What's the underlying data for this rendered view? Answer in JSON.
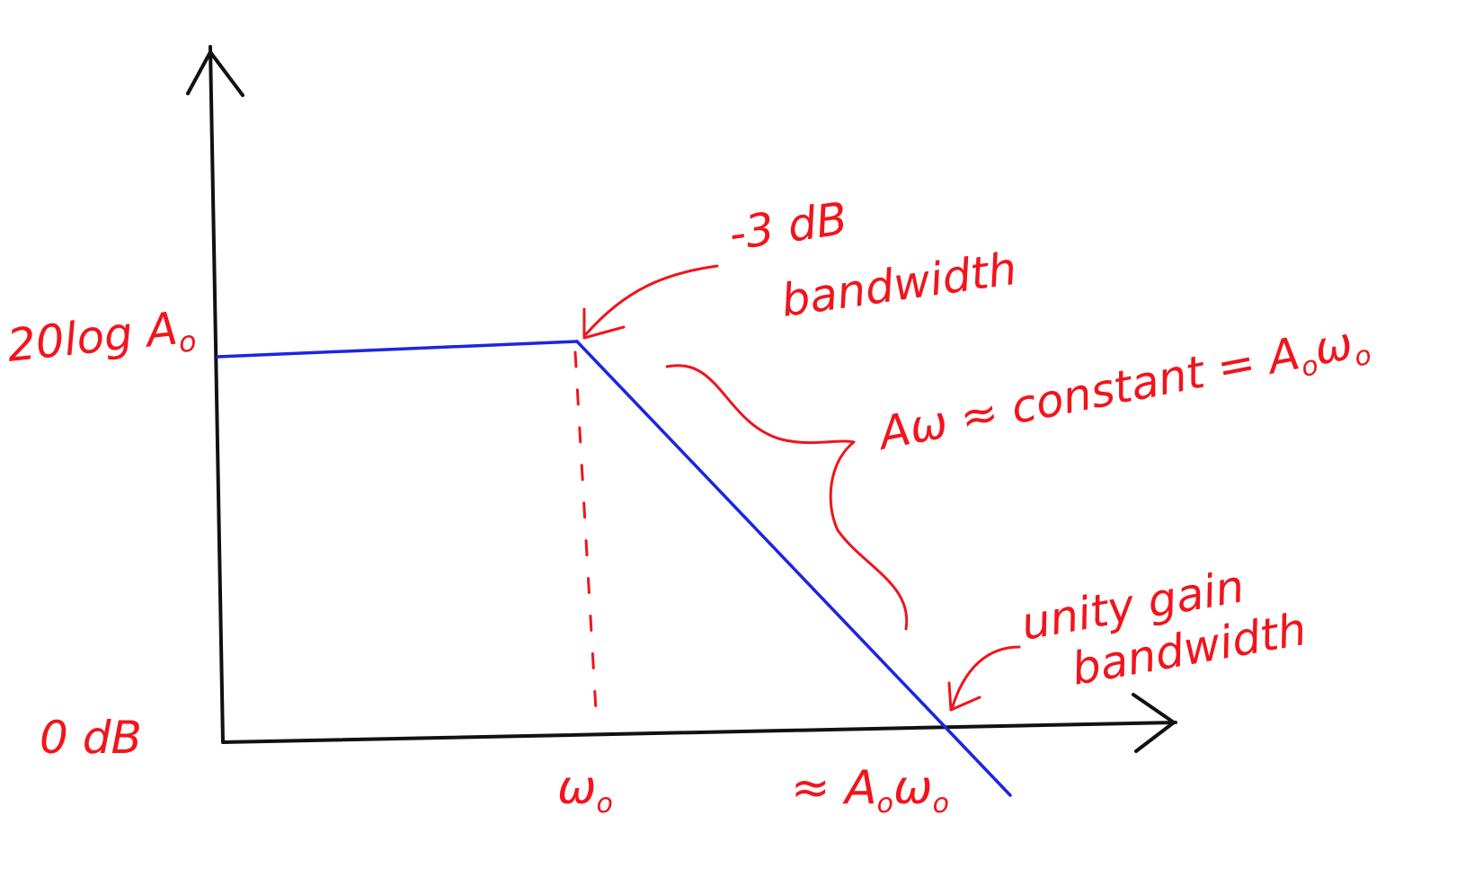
{
  "colors": {
    "background": "#ffffff",
    "axes": "#111111",
    "response_curve": "#1c25e0",
    "annotation": "#f2141c"
  },
  "labels": {
    "y_high": "20log A",
    "y_high_sub": "o",
    "y_zero": "0 dB",
    "x_corner": "ω",
    "x_corner_sub": "o",
    "x_unity_prefix": "≈ A",
    "x_unity_mid": "o",
    "x_unity_omega": "ω",
    "x_unity_sub": "o",
    "corner_line1": "-3 dB",
    "corner_line2": "bandwidth",
    "slope_text": "Aω ≈ constant = A",
    "slope_sub1": "o",
    "slope_omega": "ω",
    "slope_sub2": "o",
    "unity_line1": "unity gain",
    "unity_line2": "bandwidth"
  }
}
